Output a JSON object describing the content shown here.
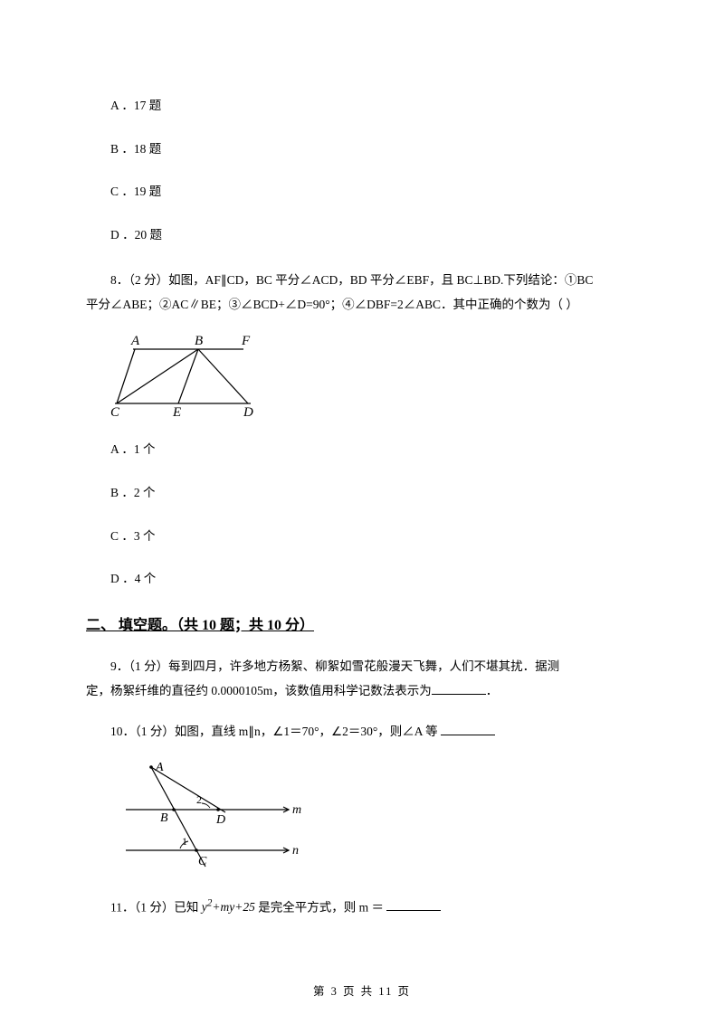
{
  "q7_opts": {
    "a": "A ．17 题",
    "b": "B ．18 题",
    "c": "C ．19 题",
    "d": "D ．20 题"
  },
  "q8": {
    "stem_line1": "8．（2 分）如图，AF∥CD，BC 平分∠ACD，BD 平分∠EBF，且 BC⊥BD.下列结论：①BC",
    "stem_line2": "平分∠ABE；②AC∥BE；③∠BCD+∠D=90°；④∠DBF=2∠ABC．其中正确的个数为（  ）",
    "opts": {
      "a": "A ．1 个",
      "b": "B ．2 个",
      "c": "C ．3 个",
      "d": "D ．4 个"
    },
    "fig": {
      "A": "A",
      "B": "B",
      "F": "F",
      "C": "C",
      "E": "E",
      "D": "D",
      "stroke": "#000000",
      "fontsize": 15
    }
  },
  "section2": "二、 填空题。（共 10 题；共 10 分）",
  "q9": {
    "line1": "9．（1 分）每到四月，许多地方杨絮、柳絮如雪花般漫天飞舞，人们不堪其扰．据测",
    "line2_pre": "定，杨絮纤维的直径约 0.0000105m，该数值用科学记数法表示为",
    "line2_post": "．"
  },
  "q10": {
    "line1_pre": "10．（1 分）如图，直线 m∥n，∠1＝70°，∠2＝30°，则∠A 等 ",
    "fig": {
      "A": "A",
      "B": "B",
      "C": "C",
      "D": "D",
      "m": "m",
      "n": "n",
      "label1": "1",
      "label2": "2",
      "stroke": "#000000",
      "fontsize": 14
    }
  },
  "q11": {
    "pre": "11．（1 分）已知 ",
    "math_html": "y<sup>2</sup>+my+25",
    "mid": " 是完全平方式，则 m ＝ "
  },
  "footer": "第 3 页 共 11 页",
  "colors": {
    "text": "#000000",
    "bg": "#ffffff"
  }
}
